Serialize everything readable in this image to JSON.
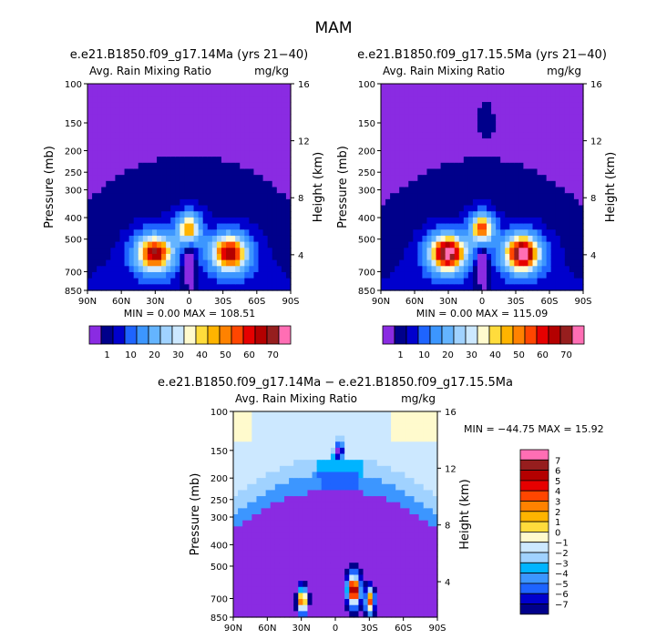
{
  "figure": {
    "title": "MAM"
  },
  "colors": {
    "ramp": [
      "#8a2be2",
      "#00008b",
      "#0000cd",
      "#1e64ff",
      "#3c96ff",
      "#64b4ff",
      "#a0d2ff",
      "#cce8ff",
      "#fffacd",
      "#ffdc3c",
      "#ffb400",
      "#ff8200",
      "#ff4600",
      "#e60000",
      "#b40000",
      "#961e1e",
      "#ff6eb4"
    ],
    "diff_ramp": [
      "#8a2be2",
      "#00008b",
      "#0000cd",
      "#1e64ff",
      "#3c96ff",
      "#00b4ff",
      "#a0d2ff",
      "#cce8ff",
      "#fffacd",
      "#ffdc3c",
      "#ffb400",
      "#ff8200",
      "#ff4600",
      "#e60000",
      "#b40000",
      "#961e1e",
      "#ff6eb4"
    ]
  },
  "chart_data": [
    {
      "type": "heatmap",
      "title": "e.e21.B1850.f09_g17.14Ma (yrs 21−40)",
      "subtitle_left": "Avg. Rain Mixing Ratio",
      "subtitle_right": "mg/kg",
      "xlabel": "",
      "ylabel": "Pressure (mb)",
      "ylabel_right": "Height (km)",
      "x_ticks": [
        "90N",
        "60N",
        "30N",
        "0",
        "30S",
        "60S",
        "90S"
      ],
      "y_ticks": [
        "100",
        "150",
        "200",
        "250",
        "300",
        "400",
        "500",
        "700",
        "850"
      ],
      "y_right_ticks": [
        "4",
        "8",
        "12",
        "16"
      ],
      "min_max": "MIN =    0.00   MAX = 108.51",
      "levels": [
        "1",
        "10",
        "20",
        "30",
        "40",
        "50",
        "60",
        "70"
      ],
      "peak": 108.51
    },
    {
      "type": "heatmap",
      "title": "e.e21.B1850.f09_g17.15.5Ma (yrs 21−40)",
      "subtitle_left": "Avg. Rain Mixing Ratio",
      "subtitle_right": "mg/kg",
      "xlabel": "",
      "ylabel": "Pressure (mb)",
      "ylabel_right": "Height (km)",
      "x_ticks": [
        "90N",
        "60N",
        "30N",
        "0",
        "30S",
        "60S",
        "90S"
      ],
      "y_ticks": [
        "100",
        "150",
        "200",
        "250",
        "300",
        "400",
        "500",
        "700",
        "850"
      ],
      "y_right_ticks": [
        "4",
        "8",
        "12",
        "16"
      ],
      "min_max": "MIN =    0.00   MAX = 115.09",
      "levels": [
        "1",
        "10",
        "20",
        "30",
        "40",
        "50",
        "60",
        "70"
      ],
      "peak": 115.09
    },
    {
      "type": "heatmap",
      "title": "e.e21.B1850.f09_g17.14Ma − e.e21.B1850.f09_g17.15.5Ma",
      "subtitle_left": "Avg. Rain Mixing Ratio",
      "subtitle_right": "mg/kg",
      "xlabel": "",
      "ylabel": "Pressure (mb)",
      "ylabel_right": "Height (km)",
      "x_ticks": [
        "90N",
        "60N",
        "30N",
        "0",
        "30S",
        "60S",
        "90S"
      ],
      "y_ticks": [
        "100",
        "150",
        "200",
        "250",
        "300",
        "400",
        "500",
        "700",
        "850"
      ],
      "y_right_ticks": [
        "4",
        "8",
        "12",
        "16"
      ],
      "min_max": "MIN = −44.75   MAX =  15.92",
      "levels": [
        "7",
        "6",
        "5",
        "4",
        "3",
        "2",
        "1",
        "0",
        "−1",
        "−2",
        "−3",
        "−4",
        "−5",
        "−6",
        "−7"
      ],
      "min": -44.75,
      "max": 15.92
    }
  ]
}
